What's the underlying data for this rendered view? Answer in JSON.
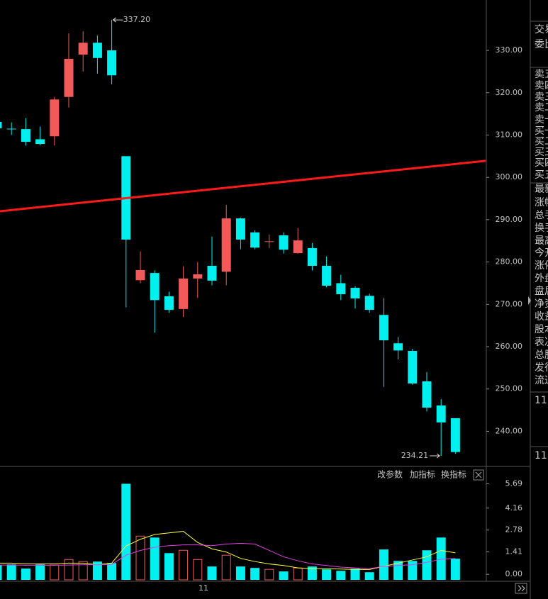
{
  "chart_data": [
    {
      "type": "candlestick",
      "up_color": "#f25a5a",
      "down_color": "#00f0f0",
      "open": [
        313.1,
        311.5,
        311.4,
        309.0,
        309.7,
        319.0,
        329.0,
        331.8,
        330.0,
        305.0,
        275.7,
        277.4,
        271.9,
        268.9,
        276.1,
        279.1,
        277.7,
        290.3,
        287.0,
        284.8,
        286.3,
        282.1,
        283.3,
        279.1,
        275.0,
        273.9,
        272.0,
        267.5,
        260.8,
        259.0,
        251.8,
        246.1,
        243.1
      ],
      "high": [
        313.5,
        313.0,
        314.0,
        312.0,
        319.0,
        334.0,
        334.5,
        333.5,
        337.2,
        305.0,
        282.5,
        278.0,
        273.0,
        279.0,
        280.0,
        286.0,
        293.5,
        290.5,
        287.5,
        286.5,
        287.0,
        288.0,
        284.5,
        281.3,
        277.0,
        274.3,
        272.5,
        271.5,
        262.3,
        259.5,
        254.0,
        247.6,
        243.1
      ],
      "low": [
        311.0,
        310.0,
        307.5,
        307.6,
        307.5,
        316.5,
        325.0,
        324.5,
        322.0,
        269.3,
        275.0,
        263.3,
        268.0,
        267.0,
        271.5,
        274.5,
        274.5,
        283.0,
        283.0,
        283.3,
        282.0,
        282.0,
        278.0,
        274.0,
        271.0,
        269.0,
        268.0,
        250.5,
        257.0,
        251.0,
        244.7,
        234.21,
        234.7
      ],
      "close": [
        311.6,
        311.4,
        308.4,
        307.9,
        318.4,
        328.0,
        331.8,
        328.2,
        324.1,
        285.3,
        278.1,
        271.0,
        268.7,
        276.1,
        277.1,
        275.6,
        290.3,
        285.3,
        283.4,
        284.9,
        282.9,
        285.1,
        279.1,
        274.4,
        272.4,
        271.4,
        268.7,
        261.5,
        259.1,
        251.3,
        245.6,
        242.1,
        235.1
      ],
      "ylim": [
        231.7,
        341.9
      ],
      "yticks": [
        {
          "value": 240,
          "label": "240.00"
        },
        {
          "value": 250,
          "label": "250.00"
        },
        {
          "value": 260,
          "label": "260.00"
        },
        {
          "value": 270,
          "label": "270.00"
        },
        {
          "value": 280,
          "label": "280.00"
        },
        {
          "value": 290,
          "label": "290.00"
        },
        {
          "value": 300,
          "label": "300.00"
        },
        {
          "value": 310,
          "label": "310.00"
        },
        {
          "value": 320,
          "label": "320.00"
        },
        {
          "value": 330,
          "label": "330.00"
        }
      ],
      "trendline": {
        "start": 292.0,
        "end": 303.9,
        "color": "#ff1a1a"
      },
      "high_label": {
        "value": 337.2,
        "label": "337.20"
      },
      "low_label": {
        "value": 234.21,
        "label": "234.21"
      }
    },
    {
      "type": "volume",
      "values": [
        0.58,
        0.62,
        0.36,
        0.62,
        0.58,
        0.93,
        0.8,
        0.8,
        0.71,
        5.69,
        2.4,
        2.31,
        1.33,
        1.51,
        0.93,
        0.49,
        1.2,
        0.49,
        0.4,
        0.31,
        0.18,
        0.4,
        0.49,
        0.31,
        0.22,
        0.36,
        0.13,
        1.56,
        0.84,
        0.84,
        1.51,
        2.31,
        0.98
      ],
      "lines": [
        {
          "color": "#ffff40",
          "values": [
            0.7,
            0.7,
            0.65,
            0.65,
            0.65,
            0.7,
            0.7,
            0.6,
            0.7,
            1.78,
            2.2,
            2.5,
            2.6,
            2.7,
            2.0,
            1.6,
            1.4,
            1.0,
            0.8,
            0.65,
            0.55,
            0.4,
            0.35,
            0.35,
            0.33,
            0.3,
            0.3,
            0.5,
            0.7,
            0.9,
            1.1,
            1.5,
            1.35
          ]
        },
        {
          "color": "#e040e0",
          "values": [
            0.58,
            0.58,
            0.57,
            0.57,
            0.57,
            0.58,
            0.6,
            0.6,
            0.62,
            1.2,
            1.5,
            1.7,
            1.8,
            1.85,
            1.85,
            1.8,
            1.9,
            1.95,
            1.9,
            1.5,
            1.1,
            0.85,
            0.65,
            0.55,
            0.45,
            0.4,
            0.35,
            0.5,
            0.55,
            0.6,
            0.75,
            0.95,
            1.0
          ]
        }
      ],
      "ylim": [
        -0.35,
        6.6
      ],
      "yticks": [
        {
          "value": 0,
          "label": "0.00"
        },
        1.41,
        2.78,
        4.16,
        5.69
      ],
      "x_label": "11"
    }
  ],
  "toolbar": [
    "改参数",
    "加指标",
    "换指标"
  ],
  "side_labels": [
    "交易",
    "委比",
    "卖五",
    "卖四",
    "卖三",
    "卖二",
    "卖一",
    "买一",
    "买二",
    "买三",
    "买四",
    "买五",
    "最新",
    "涨幅",
    "总手",
    "换手",
    "最高",
    "今开",
    "涨停",
    "外盘",
    "盘后",
    "净资",
    "收益",
    "股本",
    "表决",
    "总股",
    "发行",
    "流通"
  ],
  "side_numbers": [
    "11",
    "11"
  ]
}
